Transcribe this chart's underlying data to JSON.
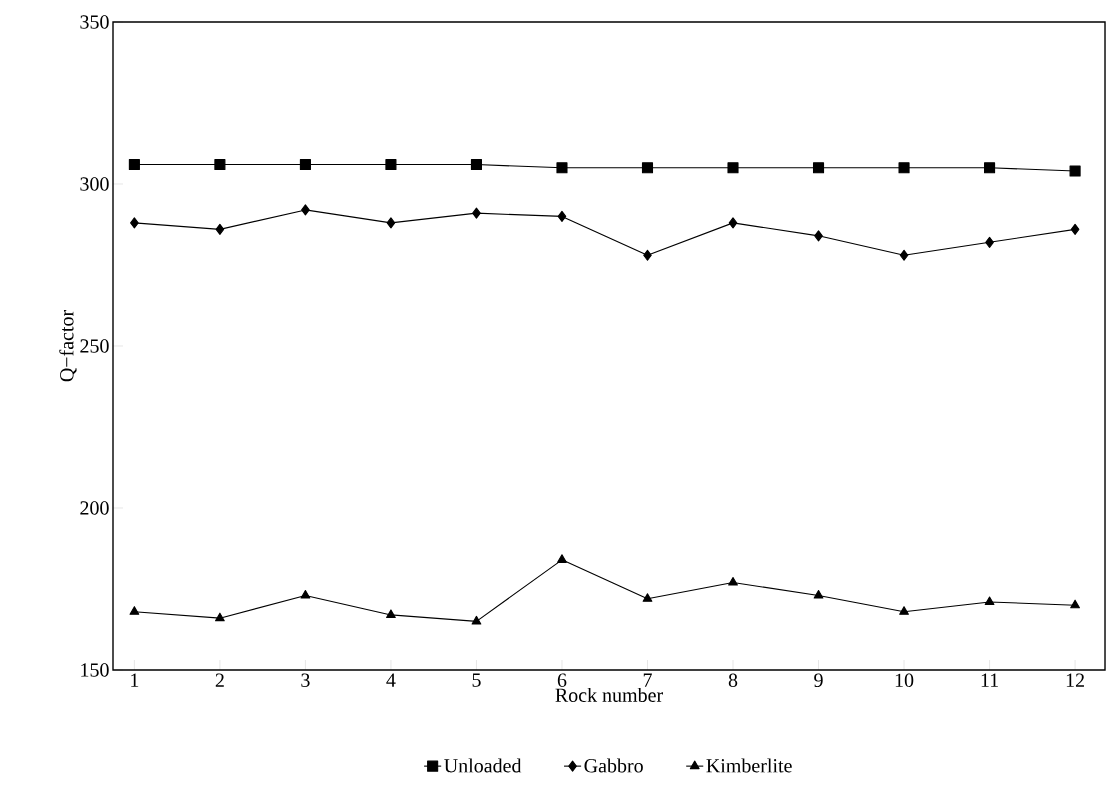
{
  "chart_data": {
    "type": "line",
    "xlabel": "Rock number",
    "ylabel": "Q−factor",
    "x": [
      1,
      2,
      3,
      4,
      5,
      6,
      7,
      8,
      9,
      10,
      11,
      12
    ],
    "xlim": [
      0.75,
      12.35
    ],
    "xticks": [
      1,
      2,
      3,
      4,
      5,
      6,
      7,
      8,
      9,
      10,
      11,
      12
    ],
    "ylim": [
      150,
      350
    ],
    "yticks": [
      150,
      200,
      250,
      300,
      350
    ],
    "grid": false,
    "legend": "bottom",
    "line_style": "solid",
    "series": [
      {
        "name": "Unloaded",
        "color": "#000000",
        "marker": "square",
        "values": [
          306,
          306,
          306,
          306,
          306,
          305,
          305,
          305,
          305,
          305,
          305,
          304
        ]
      },
      {
        "name": "Gabbro",
        "color": "#000000",
        "marker": "diamond",
        "values": [
          288,
          286,
          292,
          288,
          291,
          290,
          278,
          288,
          284,
          278,
          282,
          286
        ]
      },
      {
        "name": "Kimberlite",
        "color": "#000000",
        "marker": "triangle",
        "values": [
          168,
          166,
          173,
          167,
          165,
          184,
          172,
          177,
          173,
          168,
          171,
          170
        ]
      }
    ]
  }
}
